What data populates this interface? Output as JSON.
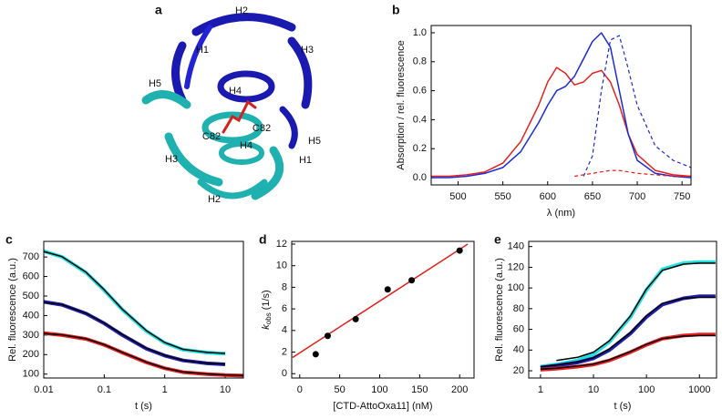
{
  "figure": {
    "panel_labels": [
      "a",
      "b",
      "c",
      "d",
      "e"
    ],
    "structure_labels": [
      {
        "text": "H2",
        "color": "#1a1ab0"
      },
      {
        "text": "H1",
        "color": "#1a1ab0"
      },
      {
        "text": "H3",
        "color": "#1a1ab0"
      },
      {
        "text": "H4",
        "color": "#1a1ab0"
      },
      {
        "text": "H5",
        "color": "#1fb5b5"
      },
      {
        "text": "C82",
        "color": "#d42020"
      },
      {
        "text": "C82",
        "color": "#d42020"
      },
      {
        "text": "H5",
        "color": "#1a1ab0"
      },
      {
        "text": "H4",
        "color": "#1fb5b5"
      },
      {
        "text": "H3",
        "color": "#1fb5b5"
      },
      {
        "text": "H1",
        "color": "#1fb5b5"
      },
      {
        "text": "H2",
        "color": "#1fb5b5"
      }
    ]
  },
  "chart_data": [
    {
      "type": "line",
      "x_label": "λ (nm)",
      "y_label": "Absorption / rel. fluorescence",
      "x": [
        470,
        490,
        510,
        530,
        550,
        570,
        590,
        600,
        610,
        620,
        630,
        640,
        650,
        660,
        670,
        680,
        690,
        700,
        720,
        740,
        760
      ],
      "series": [
        {
          "color": "#e8201c",
          "line_width": 1.5,
          "dash": false,
          "values": [
            0.01,
            0.01,
            0.02,
            0.04,
            0.1,
            0.25,
            0.5,
            0.66,
            0.76,
            0.72,
            0.64,
            0.66,
            0.72,
            0.74,
            0.66,
            0.5,
            0.3,
            0.16,
            0.05,
            0.02,
            0.01
          ]
        },
        {
          "color": "#1a2bd6",
          "line_width": 1.5,
          "dash": false,
          "values": [
            0,
            0,
            0.01,
            0.03,
            0.07,
            0.18,
            0.38,
            0.5,
            0.6,
            0.63,
            0.7,
            0.82,
            0.94,
            1.0,
            0.9,
            0.6,
            0.3,
            0.12,
            0.03,
            0.01,
            0
          ]
        },
        {
          "color": "#1a2bd6",
          "line_width": 1.2,
          "dash": true,
          "values": [
            null,
            null,
            null,
            null,
            null,
            null,
            null,
            null,
            null,
            null,
            null,
            0.01,
            0.15,
            0.6,
            0.95,
            0.98,
            0.75,
            0.5,
            0.22,
            0.12,
            0.07
          ]
        },
        {
          "color": "#e8201c",
          "line_width": 1.2,
          "dash": true,
          "values": [
            null,
            null,
            null,
            null,
            null,
            null,
            null,
            null,
            null,
            null,
            0.01,
            0.02,
            0.03,
            0.04,
            0.05,
            0.05,
            0.04,
            0.03,
            0.02,
            0.01,
            0.01
          ]
        }
      ],
      "xlim": [
        470,
        760
      ],
      "ylim": [
        -0.05,
        1.05
      ],
      "xticks": [
        500,
        550,
        600,
        650,
        700,
        750
      ],
      "yticks": [
        {
          "value": 0,
          "label": "0.0"
        },
        {
          "value": 0.2,
          "label": "0.2"
        },
        {
          "value": 0.4,
          "label": "0.4"
        },
        {
          "value": 0.6,
          "label": "0.6"
        },
        {
          "value": 0.8,
          "label": "0.8"
        },
        {
          "value": 1,
          "label": "1.0"
        }
      ]
    },
    {
      "type": "line",
      "xscale": "log",
      "x_label": "t (s)",
      "y_label": "Rel. fluorescence (a.u.)",
      "x": [
        0.01,
        0.02,
        0.05,
        0.1,
        0.2,
        0.5,
        1,
        2,
        5,
        10,
        20
      ],
      "series": [
        {
          "color": "#22e0e0",
          "line_width": 4,
          "values": [
            730,
            700,
            620,
            530,
            430,
            320,
            260,
            225,
            210,
            205,
            null
          ]
        },
        {
          "color": "#2020b0",
          "line_width": 4,
          "values": [
            470,
            455,
            410,
            360,
            300,
            230,
            195,
            170,
            155,
            150,
            null
          ]
        },
        {
          "color": "#e82020",
          "line_width": 4,
          "values": [
            310,
            300,
            280,
            250,
            210,
            160,
            130,
            110,
            100,
            95,
            92
          ]
        },
        {
          "color": "#000000",
          "line_width": 1.5,
          "values": [
            728,
            702,
            622,
            532,
            432,
            322,
            262,
            227,
            211,
            206,
            null
          ]
        },
        {
          "color": "#000000",
          "line_width": 1.5,
          "values": [
            468,
            456,
            412,
            362,
            302,
            232,
            196,
            171,
            156,
            151,
            null
          ]
        },
        {
          "color": "#000000",
          "line_width": 1.5,
          "values": [
            308,
            301,
            281,
            251,
            211,
            161,
            131,
            111,
            101,
            96,
            93
          ]
        }
      ],
      "xlim": [
        0.01,
        20
      ],
      "ylim": [
        80,
        780
      ],
      "xticks": [
        0.01,
        0.1,
        1,
        10
      ],
      "yticks": [
        100,
        200,
        300,
        400,
        500,
        600,
        700
      ]
    },
    {
      "type": "scatter",
      "x_label": "[CTD-AttoOxa11] (nM)",
      "y_label": "k",
      "y_label_sub": "obs",
      "y_label_unit": "(1/s)",
      "x": [
        20,
        35,
        70,
        110,
        140,
        200
      ],
      "values": [
        1.8,
        3.5,
        5.05,
        7.8,
        8.65,
        11.4
      ],
      "color": "#000000",
      "fit": {
        "x": [
          -9,
          210
        ],
        "values": [
          1.5,
          12.0
        ],
        "color": "#e0201b"
      },
      "xlim": [
        -10,
        218
      ],
      "ylim": [
        -0.4,
        12.25
      ],
      "xticks": [
        0,
        50,
        100,
        150,
        200
      ],
      "yticks": [
        0,
        2,
        4,
        6,
        8,
        10,
        12
      ]
    },
    {
      "type": "line",
      "xscale": "log",
      "x_label": "t (s)",
      "y_label": "Rel. fluorescence (a.u.)",
      "x": [
        1,
        2,
        5,
        10,
        20,
        50,
        100,
        200,
        500,
        1000,
        2000
      ],
      "series": [
        {
          "color": "#22e0e0",
          "line_width": 4,
          "values": [
            24,
            26,
            30,
            36,
            48,
            72,
            98,
            118,
            124,
            125,
            125
          ]
        },
        {
          "color": "#2020b0",
          "line_width": 4,
          "values": [
            23,
            25,
            28,
            32,
            40,
            56,
            72,
            84,
            90,
            92,
            92
          ]
        },
        {
          "color": "#e82020",
          "line_width": 4,
          "values": [
            21,
            22,
            24,
            26,
            30,
            38,
            45,
            51,
            54,
            55,
            55
          ]
        },
        {
          "color": "#000000",
          "line_width": 1.5,
          "values": [
            null,
            30,
            33,
            38,
            49,
            73,
            99,
            117,
            123,
            124,
            124
          ]
        },
        {
          "color": "#000000",
          "line_width": 1.5,
          "values": [
            24,
            25.5,
            28.5,
            32.5,
            41,
            57,
            73,
            85,
            90,
            91,
            91
          ]
        },
        {
          "color": "#000000",
          "line_width": 1.5,
          "values": [
            21.5,
            22.5,
            24.5,
            26.5,
            30.5,
            38.5,
            45.5,
            51,
            53.5,
            54,
            54
          ]
        }
      ],
      "xlim": [
        0.6,
        2100
      ],
      "ylim": [
        13,
        145
      ],
      "xticks": [
        1,
        10,
        100,
        1000
      ],
      "yticks": [
        20,
        40,
        60,
        80,
        100,
        120,
        140
      ]
    }
  ]
}
